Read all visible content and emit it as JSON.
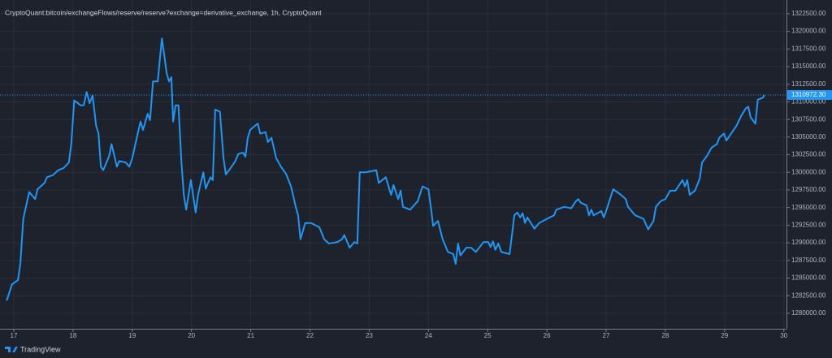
{
  "chart_data": {
    "type": "line",
    "title": "CryptoQuant:bitcoin/exchangeFlows/reserve/reserve?exchange=derivative_exchange, 1h, CryptoQuant",
    "brand": "TradingView",
    "color": "#2196f3",
    "grid": true,
    "x": [
      16.88,
      16.97,
      17.07,
      17.11,
      17.16,
      17.26,
      17.36,
      17.4,
      17.52,
      17.56,
      17.66,
      17.75,
      17.84,
      17.93,
      17.97,
      18.02,
      18.13,
      18.18,
      18.23,
      18.28,
      18.33,
      18.39,
      18.43,
      18.47,
      18.51,
      18.61,
      18.65,
      18.69,
      18.74,
      18.78,
      18.89,
      18.95,
      19.0,
      19.1,
      19.14,
      19.18,
      19.26,
      19.3,
      19.35,
      19.43,
      19.5,
      19.54,
      19.58,
      19.62,
      19.66,
      19.69,
      19.73,
      19.78,
      19.83,
      19.87,
      19.91,
      19.99,
      20.07,
      20.11,
      20.2,
      20.24,
      20.32,
      20.36,
      20.4,
      20.48,
      20.54,
      20.58,
      20.66,
      20.74,
      20.79,
      20.87,
      20.91,
      20.95,
      20.99,
      21.07,
      21.12,
      21.16,
      21.25,
      21.29,
      21.35,
      21.43,
      21.51,
      21.6,
      21.68,
      21.76,
      21.8,
      21.84,
      21.92,
      22.02,
      22.16,
      22.24,
      22.32,
      22.46,
      22.54,
      22.58,
      22.67,
      22.75,
      22.8,
      22.84,
      22.94,
      23.12,
      23.16,
      23.28,
      23.37,
      23.41,
      23.49,
      23.53,
      23.57,
      23.69,
      23.82,
      23.9,
      24.0,
      24.04,
      24.08,
      24.16,
      24.24,
      24.33,
      24.42,
      24.46,
      24.5,
      24.54,
      24.64,
      24.72,
      24.8,
      24.93,
      25.01,
      25.05,
      25.09,
      25.13,
      25.18,
      25.23,
      25.37,
      25.41,
      25.45,
      25.5,
      25.55,
      25.59,
      25.63,
      25.67,
      25.79,
      25.87,
      26.0,
      26.12,
      26.16,
      26.29,
      26.41,
      26.49,
      26.53,
      26.57,
      26.67,
      26.71,
      26.75,
      26.79,
      26.92,
      26.96,
      27.0,
      27.08,
      27.12,
      27.25,
      27.33,
      27.37,
      27.49,
      27.63,
      27.71,
      27.8,
      27.84,
      27.92,
      28.0,
      28.08,
      28.17,
      28.29,
      28.33,
      28.37,
      28.41,
      28.5,
      28.58,
      28.62,
      28.7,
      28.78,
      28.87,
      28.91,
      28.99,
      29.03,
      29.11,
      29.2,
      29.28,
      29.36,
      29.4,
      29.44,
      29.52,
      29.56,
      29.65,
      29.67
    ],
    "values": [
      1281800,
      1284100,
      1284700,
      1287000,
      1293400,
      1297200,
      1296200,
      1297600,
      1298500,
      1299300,
      1299600,
      1300300,
      1300600,
      1301400,
      1304000,
      1310200,
      1309500,
      1309500,
      1311400,
      1309800,
      1310900,
      1306600,
      1305500,
      1300800,
      1300300,
      1302300,
      1304000,
      1302600,
      1300800,
      1301600,
      1301400,
      1300800,
      1302000,
      1305800,
      1307200,
      1306000,
      1308300,
      1307400,
      1312900,
      1312900,
      1319000,
      1316600,
      1314100,
      1312900,
      1313500,
      1307200,
      1309500,
      1309500,
      1301400,
      1296800,
      1294700,
      1298900,
      1294300,
      1296800,
      1300000,
      1297700,
      1299300,
      1298900,
      1308900,
      1308600,
      1302000,
      1299700,
      1300600,
      1301600,
      1302600,
      1302800,
      1302200,
      1304900,
      1306000,
      1306600,
      1306900,
      1305500,
      1305700,
      1304300,
      1304900,
      1302000,
      1300800,
      1299700,
      1298000,
      1295100,
      1293900,
      1290500,
      1292800,
      1292800,
      1292200,
      1290500,
      1289900,
      1290100,
      1290500,
      1291100,
      1289300,
      1290100,
      1289900,
      1300000,
      1300000,
      1300300,
      1298500,
      1299300,
      1296800,
      1298200,
      1296200,
      1297400,
      1295100,
      1294700,
      1295900,
      1298000,
      1297600,
      1295100,
      1292400,
      1293100,
      1290500,
      1288700,
      1288400,
      1287000,
      1289900,
      1288200,
      1289300,
      1289300,
      1288700,
      1290100,
      1290100,
      1289400,
      1290200,
      1289000,
      1289900,
      1288700,
      1288400,
      1291100,
      1293900,
      1294300,
      1293600,
      1294200,
      1292800,
      1293600,
      1292000,
      1292800,
      1293400,
      1293900,
      1294700,
      1295100,
      1294900,
      1295900,
      1296200,
      1295700,
      1295300,
      1293900,
      1294700,
      1293900,
      1294500,
      1293600,
      1294500,
      1296600,
      1297600,
      1296800,
      1296200,
      1295100,
      1293900,
      1293400,
      1291900,
      1293100,
      1295100,
      1295900,
      1296200,
      1297400,
      1297400,
      1298900,
      1298000,
      1298900,
      1296800,
      1297400,
      1299100,
      1301400,
      1302300,
      1303500,
      1304000,
      1304900,
      1305500,
      1304500,
      1305500,
      1306600,
      1308000,
      1309100,
      1309300,
      1307800,
      1306900,
      1310300,
      1310600,
      1310972.3
    ],
    "last_value": {
      "value": 1310972.3,
      "label": "1310972.30"
    },
    "xlim": [
      16.767,
      30.045
    ],
    "xticks": [
      17,
      18,
      19,
      20,
      21,
      22,
      23,
      24,
      25,
      26,
      27,
      28,
      29,
      30
    ],
    "ylim": [
      1277800,
      1324450
    ],
    "yticks": [
      {
        "value": 1280000,
        "label": "1280000.00"
      },
      {
        "value": 1282500,
        "label": "1282500.00"
      },
      {
        "value": 1285000,
        "label": "1285000.00"
      },
      {
        "value": 1287500,
        "label": "1287500.00"
      },
      {
        "value": 1290000,
        "label": "1290000.00"
      },
      {
        "value": 1292500,
        "label": "1292500.00"
      },
      {
        "value": 1295000,
        "label": "1295000.00"
      },
      {
        "value": 1297500,
        "label": "1297500.00"
      },
      {
        "value": 1300000,
        "label": "1300000.00"
      },
      {
        "value": 1302500,
        "label": "1302500.00"
      },
      {
        "value": 1305000,
        "label": "1305000.00"
      },
      {
        "value": 1307500,
        "label": "1307500.00"
      },
      {
        "value": 1310000,
        "label": "1310000.00"
      },
      {
        "value": 1312500,
        "label": "1312500.00"
      },
      {
        "value": 1315000,
        "label": "1315000.00"
      },
      {
        "value": 1317500,
        "label": "1317500.00"
      },
      {
        "value": 1320000,
        "label": "1320000.00"
      },
      {
        "value": 1322500,
        "label": "1322500.00"
      }
    ]
  }
}
